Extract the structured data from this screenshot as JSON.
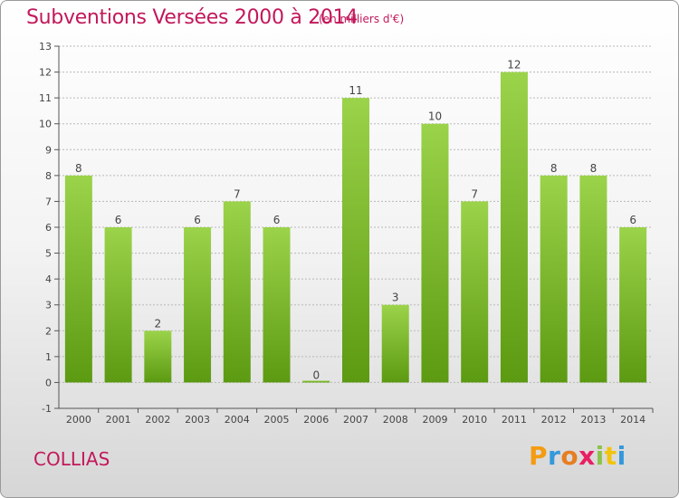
{
  "header": {
    "title": "Subventions Versées 2000 à 2014",
    "unit": "(en milliers d'€)"
  },
  "footer": {
    "commune": "COLLIAS",
    "logo_letters": [
      "P",
      "r",
      "o",
      "x",
      "i",
      "t",
      "i"
    ],
    "logo_colors": [
      "#f39c12",
      "#3498db",
      "#e67e22",
      "#e91e63",
      "#8bc34a",
      "#f1c40f",
      "#3498db"
    ]
  },
  "colors": {
    "bar_top": "#9bd34a",
    "bar_bottom": "#5c9a12",
    "title": "#c2185b",
    "grid": "#b9b9b9"
  },
  "chart_data": {
    "type": "bar",
    "title": "Subventions Versées 2000 à 2014",
    "categories": [
      "2000",
      "2001",
      "2002",
      "2003",
      "2004",
      "2005",
      "2006",
      "2007",
      "2008",
      "2009",
      "2010",
      "2011",
      "2012",
      "2013",
      "2014"
    ],
    "values": [
      8,
      6,
      2,
      6,
      7,
      6,
      0,
      11,
      3,
      10,
      7,
      12,
      8,
      8,
      6
    ],
    "ylim": [
      -1,
      13
    ],
    "yticks": [
      -1,
      0,
      1,
      2,
      3,
      4,
      5,
      6,
      7,
      8,
      9,
      10,
      11,
      12,
      13
    ],
    "grid": true,
    "data_labels": true
  }
}
